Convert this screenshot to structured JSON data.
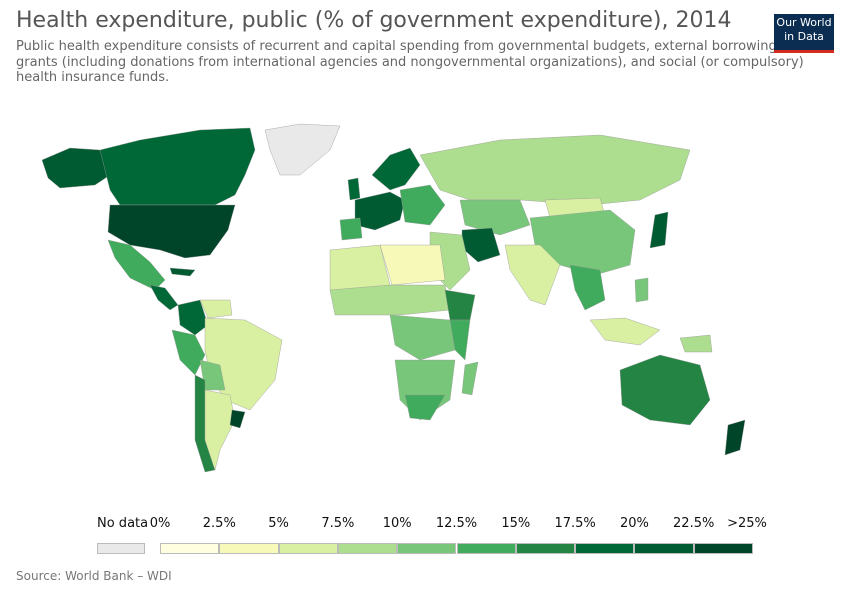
{
  "header": {
    "title": "Health expenditure, public (% of government expenditure), 2014",
    "subtitle": "Public health expenditure consists of recurrent and capital spending from governmental budgets, external borrowings and grants (including donations from international agencies and nongovernmental organizations), and social (or compulsory) health insurance funds."
  },
  "logo": {
    "line1": "Our World",
    "line2": "in Data"
  },
  "legend": {
    "no_data_label": "No data",
    "no_data_color": "#e9e9e9",
    "bins": [
      {
        "label": "0%",
        "color": "#ffffe0"
      },
      {
        "label": "2.5%",
        "color": "#f7f9b8"
      },
      {
        "label": "5%",
        "color": "#d9f0a3"
      },
      {
        "label": "7.5%",
        "color": "#addd8e"
      },
      {
        "label": "10%",
        "color": "#78c679"
      },
      {
        "label": "12.5%",
        "color": "#41ab5d"
      },
      {
        "label": "15%",
        "color": "#238443"
      },
      {
        "label": "17.5%",
        "color": "#006837"
      },
      {
        "label": "20%",
        "color": "#005a32"
      },
      {
        "label": "22.5%",
        "color": "#004529"
      },
      {
        "label": ">25%",
        "color": ""
      }
    ]
  },
  "source": "Source: World Bank – WDI",
  "map_colors": {
    "no_data": "#e9e9e9",
    "c0": "#ffffe0",
    "c1": "#f7f9b8",
    "c2": "#d9f0a3",
    "c3": "#addd8e",
    "c4": "#78c679",
    "c5": "#41ab5d",
    "c6": "#238443",
    "c7": "#006837",
    "c8": "#005a32",
    "c9": "#004529"
  }
}
